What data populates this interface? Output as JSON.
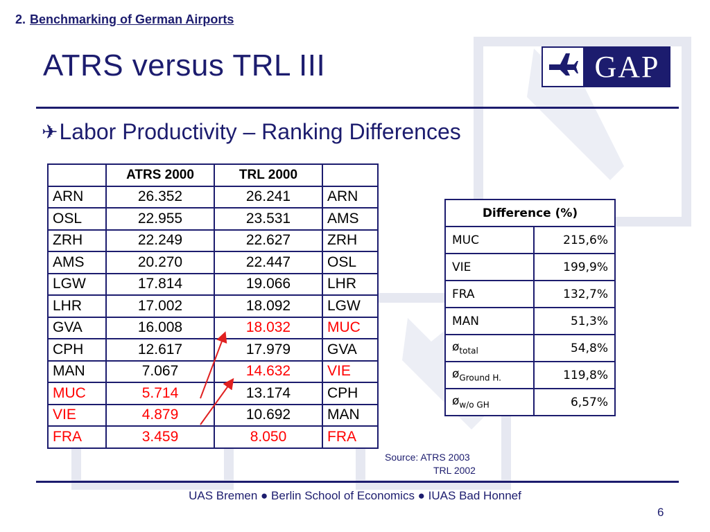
{
  "header": {
    "section_number": "2.",
    "section_title": "Benchmarking of German Airports",
    "slide_title": "ATRS versus TRL III",
    "logo_text": "GAP"
  },
  "subtitle": {
    "bullet": "✈",
    "text": "Labor Productivity – Ranking Differences"
  },
  "ranking_table": {
    "headers": [
      "",
      "ATRS 2000",
      "TRL 2000",
      ""
    ],
    "rows": [
      {
        "a": "ARN",
        "atrs": "26.352",
        "trl": "26.241",
        "b": "ARN"
      },
      {
        "a": "OSL",
        "atrs": "22.955",
        "trl": "23.531",
        "b": "AMS"
      },
      {
        "a": "ZRH",
        "atrs": "22.249",
        "trl": "22.627",
        "b": "ZRH"
      },
      {
        "a": "AMS",
        "atrs": "20.270",
        "trl": "22.447",
        "b": "OSL"
      },
      {
        "a": "LGW",
        "atrs": "17.814",
        "trl": "19.066",
        "b": "LHR"
      },
      {
        "a": "LHR",
        "atrs": "17.002",
        "trl": "18.092",
        "b": "LGW"
      },
      {
        "a": "GVA",
        "atrs": "16.008",
        "trl": "18.032",
        "b": "MUC"
      },
      {
        "a": "CPH",
        "atrs": "12.617",
        "trl": "17.979",
        "b": "GVA"
      },
      {
        "a": "MAN",
        "atrs": "7.067",
        "trl": "14.632",
        "b": "VIE"
      },
      {
        "a": "MUC",
        "atrs": "5.714",
        "trl": "13.174",
        "b": "CPH"
      },
      {
        "a": "VIE",
        "atrs": "4.879",
        "trl": "10.692",
        "b": "MAN"
      },
      {
        "a": "FRA",
        "atrs": "3.459",
        "trl": "8.050",
        "b": "FRA"
      }
    ],
    "highlight_color": "#ff0000"
  },
  "difference_table": {
    "header": "Difference (%)",
    "rows": [
      {
        "label": "MUC",
        "sub": "",
        "value": "215,6%"
      },
      {
        "label": "VIE",
        "sub": "",
        "value": "199,9%"
      },
      {
        "label": "FRA",
        "sub": "",
        "value": "132,7%"
      },
      {
        "label": "MAN",
        "sub": "",
        "value": "51,3%"
      },
      {
        "label": "ø",
        "sub": "total",
        "value": "54,8%"
      },
      {
        "label": "ø",
        "sub": "Ground H.",
        "value": "119,8%"
      },
      {
        "label": "ø",
        "sub": "w/o GH",
        "value": "6,57%"
      }
    ]
  },
  "source": {
    "line1": "Source: ATRS 2003",
    "line2": "TRL  2002"
  },
  "footer": {
    "text": "UAS Bremen ● Berlin School of Economics ● IUAS Bad Honnef",
    "page": "6"
  },
  "colors": {
    "brand_navy": "#1c1c6e",
    "accent_red": "#ff0000",
    "watermark": "#e8eaf2"
  }
}
